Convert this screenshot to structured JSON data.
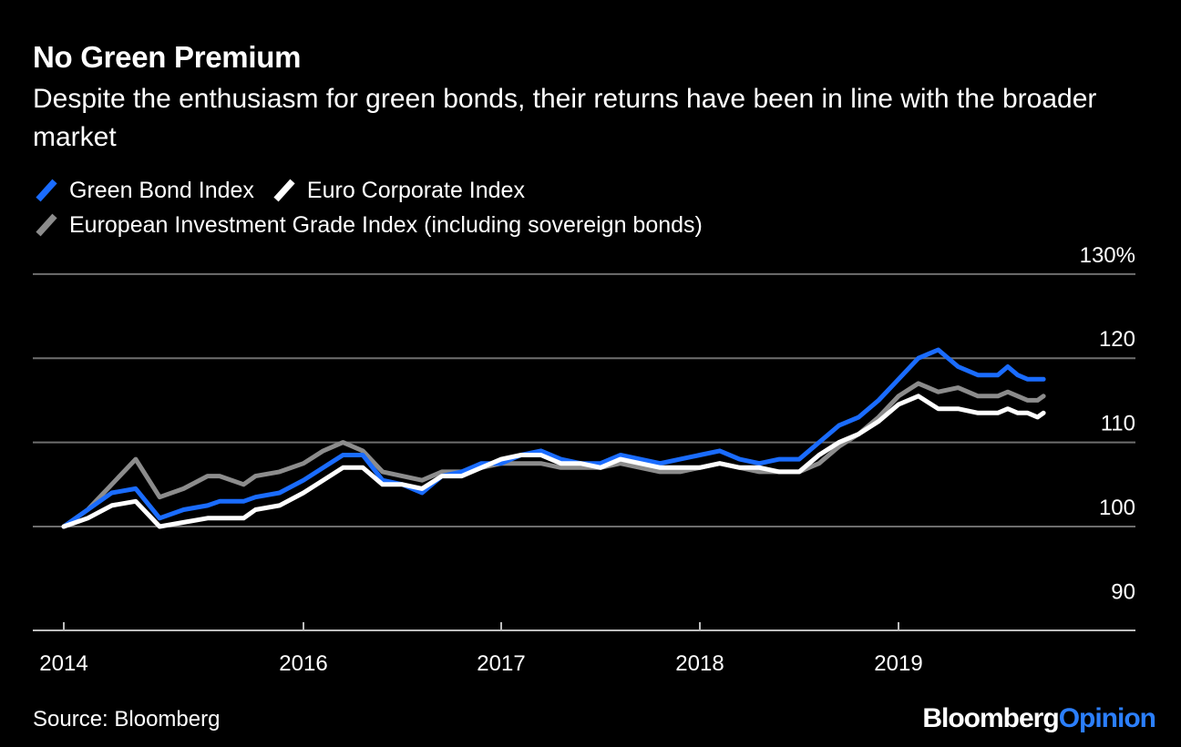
{
  "header": {
    "title": "No Green Premium",
    "subtitle": "Despite the enthusiasm for green bonds, their returns have been in line with the broader market"
  },
  "footer": {
    "source": "Source: Bloomberg",
    "brand_part1": "Bloomberg",
    "brand_part2": "Opinion"
  },
  "chart_data": {
    "type": "line",
    "title": "No Green Premium",
    "subtitle": "Despite the enthusiasm for green bonds, their returns have been in line with the broader market",
    "xlabel": "",
    "ylabel": "",
    "ylim": [
      88,
      130
    ],
    "x_ticks": [
      {
        "label": "2014",
        "x": 2014.0
      },
      {
        "label": "2016",
        "x": 2015.0
      },
      {
        "label": "2017",
        "x": 2016.0
      },
      {
        "label": "2018",
        "x": 2017.0
      },
      {
        "label": "2019",
        "x": 2018.0
      }
    ],
    "y_ticks": [
      {
        "label": "130%",
        "value": 130
      },
      {
        "label": "120",
        "value": 120
      },
      {
        "label": "110",
        "value": 110
      },
      {
        "label": "100",
        "value": 100
      },
      {
        "label": "90",
        "value": 90
      }
    ],
    "x_range": [
      2013.85,
      2019.2
    ],
    "grid": true,
    "legend_position": "top-left",
    "series": [
      {
        "name": "Green Bond Index",
        "color": "#1a6cff",
        "x": [
          2014.0,
          2014.1,
          2014.2,
          2014.3,
          2014.4,
          2014.5,
          2014.6,
          2014.65,
          2014.75,
          2014.8,
          2014.9,
          2015.0,
          2015.1,
          2015.2,
          2015.3,
          2015.4,
          2015.5,
          2015.6,
          2015.7,
          2015.8,
          2015.9,
          2016.0,
          2016.1,
          2016.2,
          2016.3,
          2016.4,
          2016.5,
          2016.6,
          2016.7,
          2016.8,
          2016.9,
          2017.0,
          2017.1,
          2017.2,
          2017.3,
          2017.4,
          2017.5,
          2017.6,
          2017.7,
          2017.8,
          2017.9,
          2018.0,
          2018.1,
          2018.2,
          2018.3,
          2018.4,
          2018.5,
          2018.55,
          2018.6,
          2018.65,
          2018.7,
          2018.73
        ],
        "values": [
          100,
          102,
          104,
          104.5,
          101,
          102,
          102.5,
          103,
          103,
          103.5,
          104,
          105.5,
          107,
          108.5,
          108.5,
          105.5,
          105,
          104,
          106,
          106.5,
          107.5,
          107.5,
          108.5,
          109,
          108,
          107.5,
          107.5,
          108.5,
          108,
          107.5,
          108,
          108.5,
          109,
          108,
          107.5,
          108,
          108,
          110,
          112,
          113,
          115,
          117.5,
          120,
          121,
          119,
          118,
          118,
          119,
          118,
          117.5,
          117.5,
          117.5
        ]
      },
      {
        "name": "Euro Corporate Index",
        "color": "#ffffff",
        "x": [
          2014.0,
          2014.1,
          2014.2,
          2014.3,
          2014.4,
          2014.5,
          2014.6,
          2014.65,
          2014.75,
          2014.8,
          2014.9,
          2015.0,
          2015.1,
          2015.2,
          2015.3,
          2015.4,
          2015.5,
          2015.6,
          2015.7,
          2015.8,
          2015.9,
          2016.0,
          2016.1,
          2016.2,
          2016.3,
          2016.4,
          2016.5,
          2016.6,
          2016.7,
          2016.8,
          2016.9,
          2017.0,
          2017.1,
          2017.2,
          2017.3,
          2017.4,
          2017.5,
          2017.6,
          2017.7,
          2017.8,
          2017.9,
          2018.0,
          2018.1,
          2018.2,
          2018.3,
          2018.4,
          2018.5,
          2018.55,
          2018.6,
          2018.65,
          2018.7,
          2018.73
        ],
        "values": [
          100,
          101,
          102.5,
          103,
          100,
          100.5,
          101,
          101,
          101,
          102,
          102.5,
          104,
          105.5,
          107,
          107,
          105,
          105,
          104.5,
          106,
          106,
          107,
          108,
          108.5,
          108.5,
          107.5,
          107.5,
          107,
          108,
          107.5,
          107,
          107,
          107,
          107.5,
          107,
          107,
          106.5,
          106.5,
          108.5,
          110,
          111,
          112.5,
          114.5,
          115.5,
          114,
          114,
          113.5,
          113.5,
          114,
          113.5,
          113.5,
          113,
          113.5
        ]
      },
      {
        "name": "European Investment Grade Index (including sovereign bonds)",
        "color": "#8c8c8c",
        "x": [
          2014.0,
          2014.1,
          2014.2,
          2014.3,
          2014.4,
          2014.5,
          2014.6,
          2014.65,
          2014.75,
          2014.8,
          2014.9,
          2015.0,
          2015.1,
          2015.2,
          2015.3,
          2015.4,
          2015.5,
          2015.6,
          2015.7,
          2015.8,
          2015.9,
          2016.0,
          2016.1,
          2016.2,
          2016.3,
          2016.4,
          2016.5,
          2016.6,
          2016.7,
          2016.8,
          2016.9,
          2017.0,
          2017.1,
          2017.2,
          2017.3,
          2017.4,
          2017.5,
          2017.6,
          2017.7,
          2017.8,
          2017.9,
          2018.0,
          2018.1,
          2018.2,
          2018.3,
          2018.4,
          2018.5,
          2018.55,
          2018.6,
          2018.65,
          2018.7,
          2018.73
        ],
        "values": [
          100,
          102,
          105,
          108,
          103.5,
          104.5,
          106,
          106,
          105,
          106,
          106.5,
          107.5,
          109,
          110,
          109,
          106.5,
          106,
          105.5,
          106.5,
          106.5,
          107,
          107.5,
          107.5,
          107.5,
          107,
          107,
          107,
          107.5,
          107,
          106.5,
          106.5,
          107,
          107.5,
          107,
          106.5,
          106.5,
          106.5,
          107.5,
          109.5,
          111,
          113,
          115.5,
          117,
          116,
          116.5,
          115.5,
          115.5,
          116,
          115.5,
          115,
          115,
          115.5
        ]
      }
    ]
  }
}
